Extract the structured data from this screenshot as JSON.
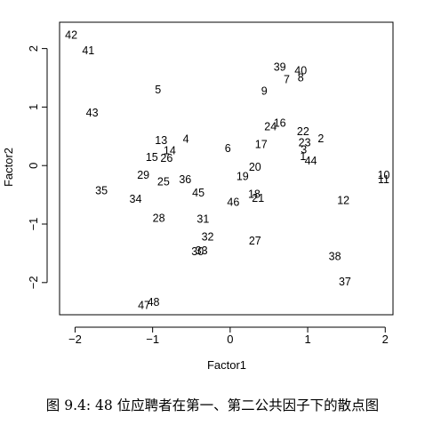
{
  "caption": "图 9.4: 48 位应聘者在第一、第二公共因子下的散点图",
  "chart_data": {
    "type": "scatter",
    "xlabel": "Factor1",
    "ylabel": "Factor2",
    "xlim": [
      -2.2,
      2.1
    ],
    "ylim": [
      -2.55,
      2.45
    ],
    "xticks": [
      -2,
      -1,
      0,
      1,
      2
    ],
    "yticks": [
      -2,
      -1,
      0,
      1,
      2
    ],
    "points": [
      {
        "label": "1",
        "x": 0.94,
        "y": 0.16
      },
      {
        "label": "2",
        "x": 1.17,
        "y": 0.47
      },
      {
        "label": "3",
        "x": 0.95,
        "y": 0.28
      },
      {
        "label": "4",
        "x": -0.57,
        "y": 0.46
      },
      {
        "label": "5",
        "x": -0.93,
        "y": 1.3
      },
      {
        "label": "6",
        "x": -0.03,
        "y": 0.3
      },
      {
        "label": "7",
        "x": 0.73,
        "y": 1.48
      },
      {
        "label": "8",
        "x": 0.91,
        "y": 1.51
      },
      {
        "label": "9",
        "x": 0.44,
        "y": 1.28
      },
      {
        "label": "10",
        "x": 1.98,
        "y": -0.16
      },
      {
        "label": "11",
        "x": 1.98,
        "y": -0.23
      },
      {
        "label": "12",
        "x": 1.46,
        "y": -0.59
      },
      {
        "label": "13",
        "x": -0.89,
        "y": 0.44
      },
      {
        "label": "14",
        "x": -0.78,
        "y": 0.26
      },
      {
        "label": "15",
        "x": -1.01,
        "y": 0.15
      },
      {
        "label": "16",
        "x": 0.64,
        "y": 0.73
      },
      {
        "label": "17",
        "x": 0.4,
        "y": 0.37
      },
      {
        "label": "18",
        "x": 0.31,
        "y": -0.48
      },
      {
        "label": "19",
        "x": 0.16,
        "y": -0.18
      },
      {
        "label": "20",
        "x": 0.32,
        "y": -0.02
      },
      {
        "label": "21",
        "x": 0.36,
        "y": -0.55
      },
      {
        "label": "22",
        "x": 0.94,
        "y": 0.59
      },
      {
        "label": "23",
        "x": 0.96,
        "y": 0.4
      },
      {
        "label": "24",
        "x": 0.52,
        "y": 0.67
      },
      {
        "label": "25",
        "x": -0.86,
        "y": -0.27
      },
      {
        "label": "26",
        "x": -0.82,
        "y": 0.13
      },
      {
        "label": "27",
        "x": 0.32,
        "y": -1.28
      },
      {
        "label": "28",
        "x": -0.92,
        "y": -0.89
      },
      {
        "label": "29",
        "x": -1.12,
        "y": -0.16
      },
      {
        "label": "30",
        "x": -0.42,
        "y": -1.46
      },
      {
        "label": "31",
        "x": -0.35,
        "y": -0.91
      },
      {
        "label": "32",
        "x": -0.29,
        "y": -1.21
      },
      {
        "label": "33",
        "x": -0.37,
        "y": -1.45
      },
      {
        "label": "34",
        "x": -1.22,
        "y": -0.57
      },
      {
        "label": "35",
        "x": -1.66,
        "y": -0.42
      },
      {
        "label": "36",
        "x": -0.58,
        "y": -0.23
      },
      {
        "label": "37",
        "x": 1.48,
        "y": -1.98
      },
      {
        "label": "38",
        "x": 1.35,
        "y": -1.55
      },
      {
        "label": "39",
        "x": 0.64,
        "y": 1.69
      },
      {
        "label": "40",
        "x": 0.91,
        "y": 1.63
      },
      {
        "label": "41",
        "x": -1.83,
        "y": 1.97
      },
      {
        "label": "42",
        "x": -2.05,
        "y": 2.24
      },
      {
        "label": "43",
        "x": -1.78,
        "y": 0.91
      },
      {
        "label": "44",
        "x": 1.04,
        "y": 0.09
      },
      {
        "label": "45",
        "x": -0.41,
        "y": -0.46
      },
      {
        "label": "46",
        "x": 0.04,
        "y": -0.62
      },
      {
        "label": "47",
        "x": -1.11,
        "y": -2.38
      },
      {
        "label": "48",
        "x": -0.99,
        "y": -2.33
      }
    ]
  }
}
